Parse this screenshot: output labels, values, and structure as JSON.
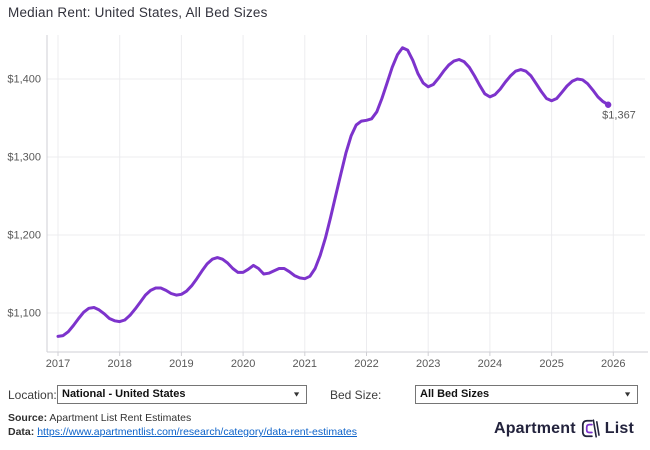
{
  "title": "Median Rent: United States, All Bed Sizes",
  "chart_data": {
    "type": "line",
    "title": "Median Rent: United States, All Bed Sizes",
    "series": [
      {
        "name": "Median rent, National - United States, All Bed Sizes",
        "start_month": "2017-01",
        "end_month": "2025-12",
        "values": [
          1070,
          1071,
          1076,
          1084,
          1093,
          1101,
          1106,
          1107,
          1104,
          1099,
          1093,
          1090,
          1089,
          1091,
          1097,
          1105,
          1114,
          1123,
          1129,
          1132,
          1132,
          1129,
          1125,
          1123,
          1124,
          1128,
          1135,
          1144,
          1154,
          1163,
          1169,
          1171,
          1169,
          1164,
          1157,
          1152,
          1152,
          1156,
          1161,
          1157,
          1150,
          1151,
          1154,
          1157,
          1157,
          1153,
          1148,
          1145,
          1144,
          1147,
          1157,
          1174,
          1196,
          1222,
          1250,
          1278,
          1305,
          1327,
          1341,
          1346,
          1347,
          1349,
          1358,
          1375,
          1395,
          1415,
          1431,
          1440,
          1437,
          1424,
          1407,
          1395,
          1390,
          1393,
          1401,
          1410,
          1418,
          1423,
          1425,
          1422,
          1415,
          1404,
          1392,
          1381,
          1377,
          1380,
          1387,
          1396,
          1404,
          1410,
          1412,
          1410,
          1404,
          1394,
          1384,
          1375,
          1372,
          1375,
          1383,
          1391,
          1397,
          1400,
          1399,
          1394,
          1386,
          1377,
          1371,
          1367
        ]
      }
    ],
    "end_point_label": "$1,367",
    "end_point_value": 1367,
    "x_axis": {
      "labels": [
        "2017",
        "2018",
        "2019",
        "2020",
        "2021",
        "2022",
        "2023",
        "2024",
        "2025",
        "2026"
      ],
      "years": [
        2017,
        2018,
        2019,
        2020,
        2021,
        2022,
        2023,
        2024,
        2025,
        2026
      ]
    },
    "y_axis": {
      "labels": [
        "$1,100",
        "$1,200",
        "$1,300",
        "$1,400"
      ],
      "values": [
        1100,
        1200,
        1300,
        1400
      ]
    },
    "ylim": [
      1050,
      1458
    ],
    "grid": true,
    "legend": "none",
    "colors": {
      "line": "#7D33CC",
      "axis_text": "#595959",
      "grid": "#ececef",
      "axis_line": "#cfcfd4"
    }
  },
  "controls": {
    "location_label": "Location:",
    "location_value": "National - United States",
    "bed_size_label": "Bed Size:",
    "bed_size_value": "All Bed Sizes"
  },
  "footer": {
    "source_label": "Source:",
    "source_text": " Apartment List Rent Estimates",
    "data_label": "Data:",
    "data_url": "https://www.apartmentlist.com/research/category/data-rent-estimates",
    "logo_word_left": "Apartment",
    "logo_word_right": "List",
    "logo_navy": "#23233d",
    "logo_purple": "#7D33CC"
  }
}
